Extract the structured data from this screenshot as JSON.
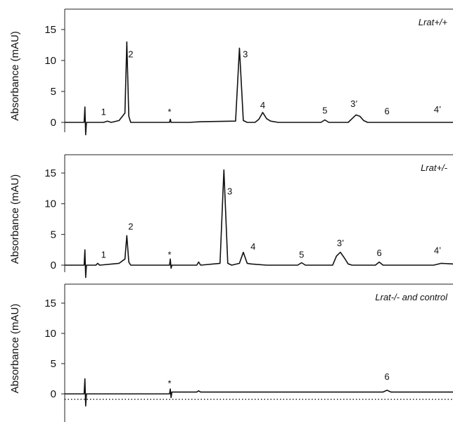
{
  "chart_data": [
    {
      "type": "line",
      "title": "Lrat+/+",
      "ylabel": "Absorbance (mAU)",
      "ylim": [
        -2,
        18
      ],
      "yticks": [
        "15",
        "10",
        "5",
        "0"
      ],
      "series": [
        {
          "values": [
            [
              0,
              0
            ],
            [
              5,
              0
            ],
            [
              5.2,
              2.5
            ],
            [
              5.4,
              -2
            ],
            [
              5.6,
              0
            ],
            [
              10,
              0
            ],
            [
              11,
              0.2
            ],
            [
              12,
              0
            ],
            [
              14,
              0.3
            ],
            [
              15.5,
              1.5
            ],
            [
              16,
              13
            ],
            [
              16.5,
              1
            ],
            [
              17,
              0
            ],
            [
              27,
              0
            ],
            [
              27.2,
              0.5
            ],
            [
              27.4,
              0
            ],
            [
              32,
              0
            ],
            [
              35,
              0.1
            ],
            [
              44,
              0.2
            ],
            [
              45,
              12
            ],
            [
              46,
              0.3
            ],
            [
              47,
              0
            ],
            [
              49,
              0
            ],
            [
              50,
              0.5
            ],
            [
              51,
              1.6
            ],
            [
              52,
              0.6
            ],
            [
              53,
              0.2
            ],
            [
              55,
              0
            ],
            [
              66,
              0
            ],
            [
              67,
              0.4
            ],
            [
              68,
              0
            ],
            [
              73,
              0
            ],
            [
              74,
              0.6
            ],
            [
              75,
              1.2
            ],
            [
              76,
              1.0
            ],
            [
              77,
              0.3
            ],
            [
              78,
              0
            ],
            [
              100,
              0
            ]
          ]
        }
      ],
      "annotations": [
        {
          "text": "1",
          "x": 10,
          "y": 1.2
        },
        {
          "text": "2",
          "x": 17,
          "y": 10.5
        },
        {
          "text": "*",
          "x": 27,
          "y": 1.2
        },
        {
          "text": "3",
          "x": 46.5,
          "y": 10.5
        },
        {
          "text": "4",
          "x": 51,
          "y": 2.3
        },
        {
          "text": "5",
          "x": 67,
          "y": 1.4
        },
        {
          "text": "3’",
          "x": 74.5,
          "y": 2.5
        },
        {
          "text": "6",
          "x": 83,
          "y": 1.3
        },
        {
          "text": "4’",
          "x": 96,
          "y": 1.6
        }
      ]
    },
    {
      "type": "line",
      "title": "Lrat+/-",
      "ylabel": "Absorbance (mAU)",
      "ylim": [
        -2,
        18
      ],
      "yticks": [
        "15",
        "10",
        "5",
        "0"
      ],
      "series": [
        {
          "values": [
            [
              0,
              0
            ],
            [
              5,
              0
            ],
            [
              5.2,
              2.5
            ],
            [
              5.4,
              -2
            ],
            [
              5.6,
              0
            ],
            [
              8,
              0
            ],
            [
              8.5,
              0.3
            ],
            [
              9,
              0
            ],
            [
              14,
              0.3
            ],
            [
              15.5,
              1
            ],
            [
              16,
              4.8
            ],
            [
              16.5,
              0.5
            ],
            [
              17,
              0
            ],
            [
              27,
              0
            ],
            [
              27.2,
              1
            ],
            [
              27.4,
              -0.5
            ],
            [
              27.6,
              0
            ],
            [
              34,
              0
            ],
            [
              34.5,
              0.5
            ],
            [
              35,
              0
            ],
            [
              40,
              0.3
            ],
            [
              41,
              15.5
            ],
            [
              42,
              0.3
            ],
            [
              43,
              0
            ],
            [
              45,
              0.3
            ],
            [
              46,
              2.1
            ],
            [
              47,
              0.3
            ],
            [
              48,
              0.2
            ],
            [
              52,
              0
            ],
            [
              60,
              0
            ],
            [
              61,
              0.4
            ],
            [
              62,
              0
            ],
            [
              69,
              0
            ],
            [
              70,
              1.5
            ],
            [
              71,
              2.1
            ],
            [
              72,
              1.2
            ],
            [
              73,
              0.2
            ],
            [
              74,
              0
            ],
            [
              80,
              0
            ],
            [
              81,
              0.5
            ],
            [
              82,
              0
            ],
            [
              95,
              0
            ],
            [
              97,
              0.3
            ],
            [
              100,
              0.2
            ]
          ]
        }
      ],
      "annotations": [
        {
          "text": "1",
          "x": 10,
          "y": 1.2
        },
        {
          "text": "2",
          "x": 17,
          "y": 5.8
        },
        {
          "text": "*",
          "x": 27,
          "y": 1.2
        },
        {
          "text": "3",
          "x": 42.5,
          "y": 11.5
        },
        {
          "text": "4",
          "x": 48.5,
          "y": 2.5
        },
        {
          "text": "5",
          "x": 61,
          "y": 1.2
        },
        {
          "text": "3’",
          "x": 71,
          "y": 3.1
        },
        {
          "text": "6",
          "x": 81,
          "y": 1.5
        },
        {
          "text": "4’",
          "x": 96,
          "y": 1.9
        }
      ]
    },
    {
      "type": "line",
      "title": "Lrat-/- and control",
      "ylabel": "Absorbance (mAU)",
      "ylim": [
        -2,
        18
      ],
      "yticks": [
        "15",
        "10",
        "5",
        "0"
      ],
      "series": [
        {
          "values": [
            [
              0,
              0
            ],
            [
              5,
              0
            ],
            [
              5.2,
              2.5
            ],
            [
              5.4,
              -2
            ],
            [
              5.6,
              0
            ],
            [
              27,
              0
            ],
            [
              27.2,
              0.8
            ],
            [
              27.4,
              -0.6
            ],
            [
              27.6,
              0.3
            ],
            [
              34,
              0.3
            ],
            [
              34.5,
              0.5
            ],
            [
              35,
              0.3
            ],
            [
              82,
              0.3
            ],
            [
              83,
              0.6
            ],
            [
              84,
              0.3
            ],
            [
              100,
              0.3
            ]
          ]
        },
        {
          "values": [
            [
              0,
              -0.9
            ],
            [
              100,
              -0.9
            ]
          ]
        }
      ],
      "annotations": [
        {
          "text": "*",
          "x": 27,
          "y": 1.2
        },
        {
          "text": "6",
          "x": 83,
          "y": 2.3
        }
      ]
    }
  ]
}
